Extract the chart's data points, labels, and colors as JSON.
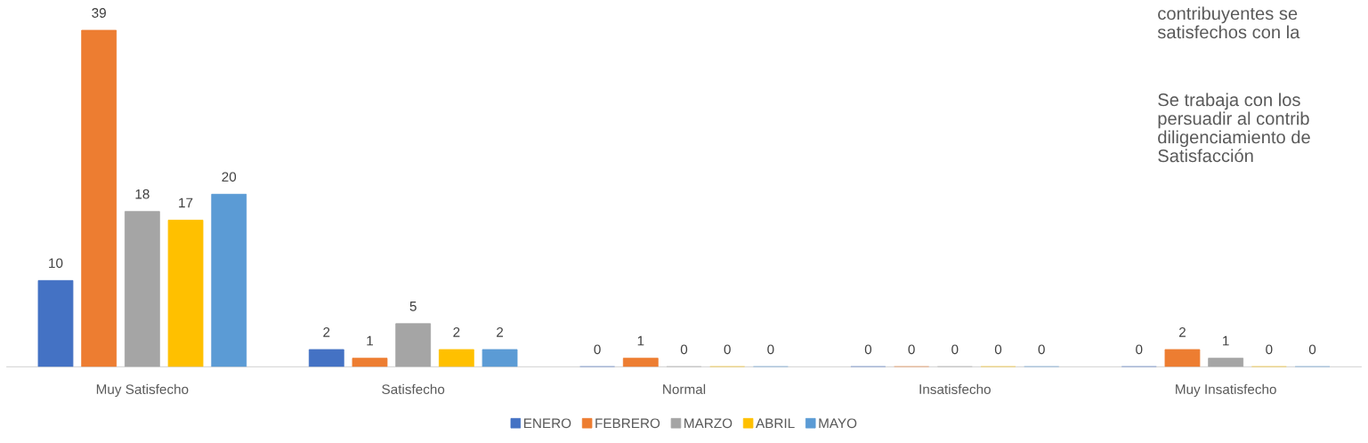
{
  "chart_data": {
    "type": "bar",
    "categories": [
      "Muy Satisfecho",
      "Satisfecho",
      "Normal",
      "Insatisfecho",
      "Muy Insatisfecho"
    ],
    "series": [
      {
        "name": "ENERO",
        "color": "#4472c4",
        "values": [
          10,
          2,
          0,
          0,
          0
        ]
      },
      {
        "name": "FEBRERO",
        "color": "#ed7d31",
        "values": [
          39,
          1,
          1,
          0,
          2
        ]
      },
      {
        "name": "MARZO",
        "color": "#a5a5a5",
        "values": [
          18,
          5,
          0,
          0,
          1
        ]
      },
      {
        "name": "ABRIL",
        "color": "#ffc000",
        "values": [
          17,
          2,
          0,
          0,
          0
        ]
      },
      {
        "name": "MAYO",
        "color": "#5b9bd5",
        "values": [
          20,
          2,
          0,
          0,
          0
        ]
      }
    ],
    "data_labels": true,
    "grid": false,
    "legend": "bottom",
    "annotations": [
      "contribuyentes se\nsatisfechos con la",
      "Se trabaja con los\npersuadir al contrib\ndiligenciamiento de\nSatisfacción"
    ]
  }
}
